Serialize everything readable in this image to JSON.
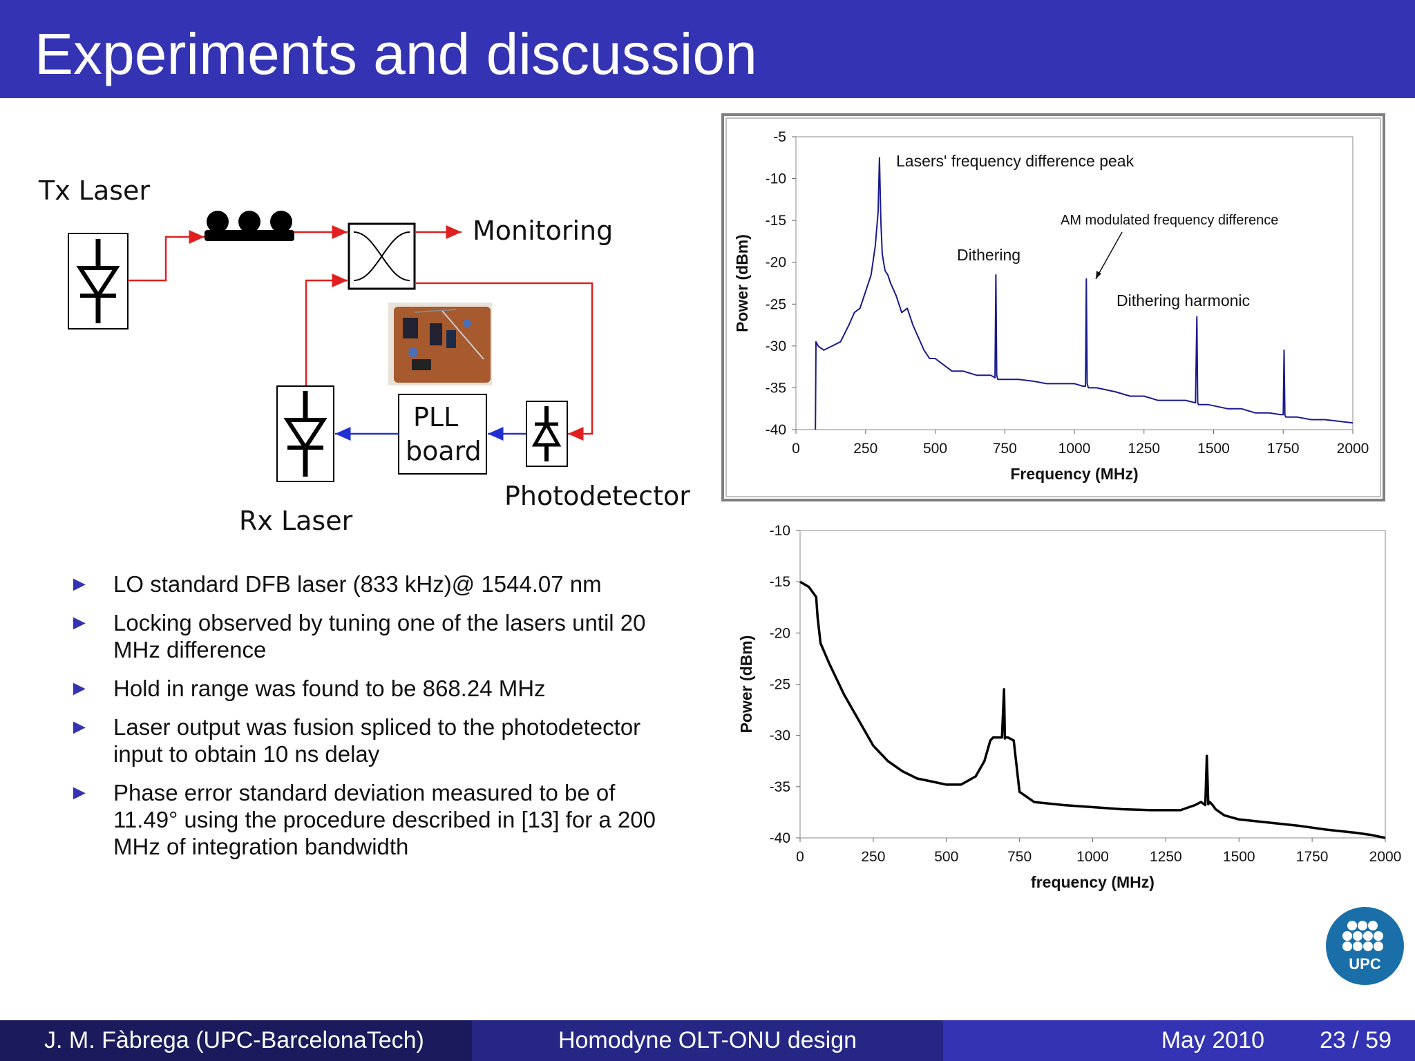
{
  "header": {
    "title": "Experiments and discussion"
  },
  "diagram": {
    "tx_laser": "Tx Laser",
    "rx_laser": "Rx Laser",
    "monitoring": "Monitoring",
    "photodetector": "Photodetector",
    "pll_line1": "PLL",
    "pll_line2": "board",
    "colors": {
      "optical_path": "#e02020",
      "electrical_path": "#2030d0"
    }
  },
  "bullets": [
    "LO standard DFB laser (833 kHz)@ 1544.07 nm",
    "Locking observed by tuning one of the lasers until 20 MHz difference",
    "Hold in range was found to be 868.24 MHz",
    "Laser output was fusion spliced to the photodetector input to obtain 10 ns delay",
    "Phase error standard deviation measured to be of 11.49° using the procedure described in [13] for a 200 MHz of integration bandwidth"
  ],
  "chart_data": [
    {
      "type": "line",
      "xlabel": "Frequency (MHz)",
      "ylabel": "Power (dBm)",
      "xlim": [
        0,
        2000
      ],
      "ylim": [
        -40,
        -5
      ],
      "xticks": [
        0,
        250,
        500,
        750,
        1000,
        1250,
        1500,
        1750,
        2000
      ],
      "yticks": [
        -5,
        -10,
        -15,
        -20,
        -25,
        -30,
        -35,
        -40
      ],
      "color": "#1a1a8c",
      "series": [
        {
          "x": [
            70,
            72,
            80,
            100,
            130,
            160,
            190,
            210,
            230,
            250,
            270,
            285,
            295,
            300,
            305,
            310,
            315,
            320,
            330,
            340,
            360,
            380,
            400,
            420,
            440,
            460,
            480,
            500,
            520,
            540,
            560,
            600,
            650,
            700,
            715,
            718,
            721,
            725,
            750,
            800,
            850,
            900,
            950,
            1000,
            1030,
            1040,
            1043,
            1046,
            1050,
            1080,
            1150,
            1200,
            1250,
            1300,
            1350,
            1400,
            1435,
            1440,
            1443,
            1446,
            1450,
            1480,
            1550,
            1600,
            1650,
            1700,
            1740,
            1750,
            1753,
            1756,
            1760,
            1800,
            1850,
            1900,
            1950,
            2000
          ],
          "y": [
            -40,
            -29.5,
            -30,
            -30.5,
            -30,
            -29.5,
            -27.5,
            -26,
            -25.5,
            -23.5,
            -21.5,
            -18,
            -14,
            -7.5,
            -15,
            -19,
            -20,
            -21,
            -21.5,
            -22.5,
            -24,
            -26,
            -25.5,
            -27.5,
            -29,
            -30.5,
            -31.5,
            -31.5,
            -32,
            -32.5,
            -33,
            -33,
            -33.5,
            -33.5,
            -33.8,
            -21.5,
            -33.5,
            -34,
            -34,
            -34,
            -34.2,
            -34.5,
            -34.5,
            -34.5,
            -34.8,
            -34.8,
            -22,
            -34.5,
            -35,
            -35,
            -35.5,
            -36,
            -36,
            -36.5,
            -36.5,
            -36.5,
            -36.8,
            -26.5,
            -36.8,
            -37,
            -37,
            -37,
            -37.5,
            -37.5,
            -38,
            -38,
            -38.2,
            -38.2,
            -30.5,
            -38.3,
            -38.5,
            -38.5,
            -38.8,
            -38.8,
            -39,
            -39.2
          ]
        }
      ],
      "annotations": [
        "Lasers' frequency difference peak",
        "Dithering",
        "AM modulated frequency difference",
        "Dithering harmonic"
      ]
    },
    {
      "type": "line",
      "xlabel": "frequency (MHz)",
      "ylabel": "Power (dBm)",
      "xlim": [
        0,
        2000
      ],
      "ylim": [
        -40,
        -10
      ],
      "xticks": [
        0,
        250,
        500,
        750,
        1000,
        1250,
        1500,
        1750,
        2000
      ],
      "yticks": [
        -10,
        -15,
        -20,
        -25,
        -30,
        -35,
        -40
      ],
      "color": "#000000",
      "series": [
        {
          "x": [
            0,
            30,
            55,
            60,
            70,
            100,
            150,
            200,
            250,
            300,
            350,
            400,
            450,
            500,
            550,
            600,
            630,
            650,
            660,
            680,
            690,
            697,
            700,
            703,
            710,
            730,
            740,
            750,
            800,
            900,
            1000,
            1100,
            1200,
            1300,
            1350,
            1370,
            1385,
            1390,
            1395,
            1400,
            1410,
            1420,
            1450,
            1500,
            1600,
            1700,
            1800,
            1900,
            1950,
            2000
          ],
          "y": [
            -15,
            -15.5,
            -16.5,
            -18.5,
            -21,
            -23,
            -26,
            -28.5,
            -31,
            -32.5,
            -33.5,
            -34.2,
            -34.5,
            -34.8,
            -34.8,
            -34,
            -32.5,
            -30.5,
            -30.2,
            -30.2,
            -30.2,
            -25.5,
            -30.3,
            -30.2,
            -30.2,
            -30.5,
            -33,
            -35.5,
            -36.5,
            -36.8,
            -37,
            -37.2,
            -37.3,
            -37.3,
            -36.8,
            -36.5,
            -36.8,
            -32,
            -36.7,
            -36.5,
            -36.8,
            -37.2,
            -37.8,
            -38.2,
            -38.5,
            -38.8,
            -39.2,
            -39.5,
            -39.7,
            -40
          ]
        }
      ]
    }
  ],
  "footer": {
    "author": "J. M. Fàbrega  (UPC-BarcelonaTech)",
    "talk": "Homodyne OLT-ONU design",
    "date": "May 2010",
    "page": "23 / 59"
  },
  "logo": {
    "text": "UPC",
    "color": "#1a6fa8"
  }
}
